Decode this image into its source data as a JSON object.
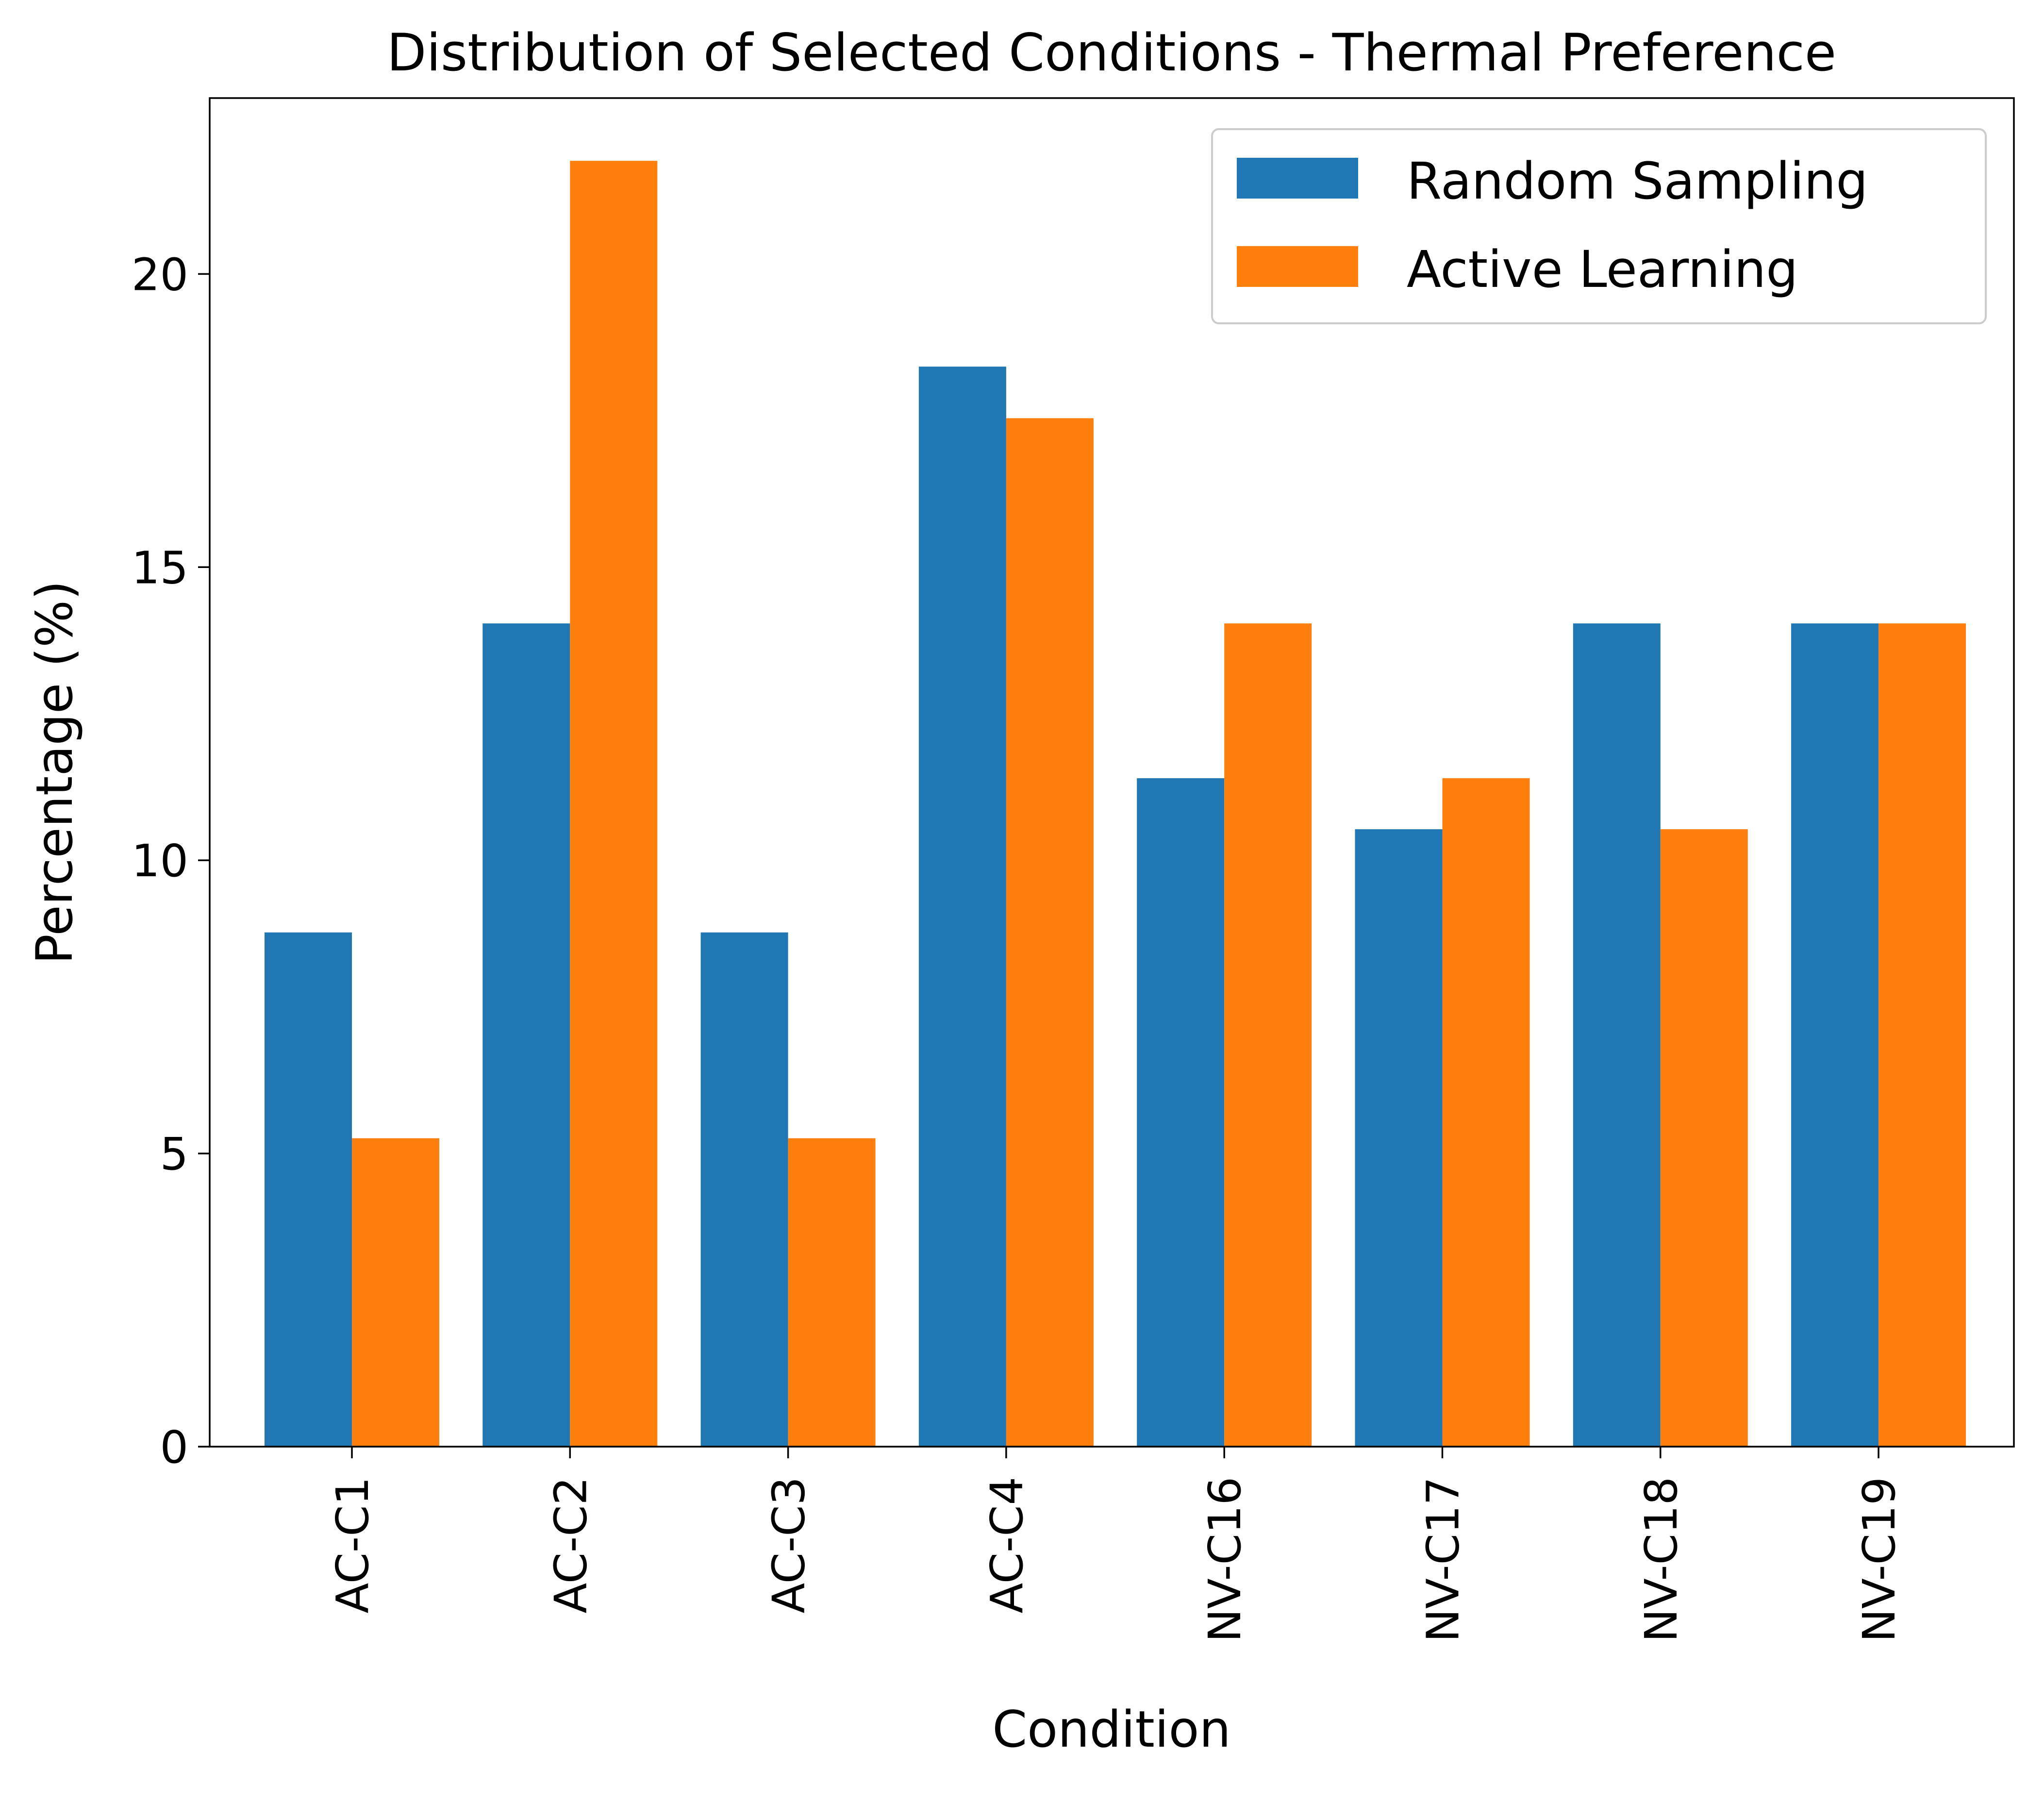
{
  "chart_data": {
    "type": "bar",
    "title": "Distribution of Selected Conditions - Thermal Preference",
    "xlabel": "Condition",
    "ylabel": "Percentage (%)",
    "categories": [
      "AC-C1",
      "AC-C2",
      "AC-C3",
      "AC-C4",
      "NV-C16",
      "NV-C17",
      "NV-C18",
      "NV-C19"
    ],
    "series": [
      {
        "name": "Random Sampling",
        "color": "#1f77b4",
        "values": [
          8.77,
          14.04,
          8.77,
          18.42,
          11.4,
          10.53,
          14.04,
          14.04
        ]
      },
      {
        "name": "Active Learning",
        "color": "#ff7f0e",
        "values": [
          5.26,
          21.93,
          5.26,
          17.54,
          14.04,
          11.4,
          10.53,
          14.04
        ]
      }
    ],
    "ylim": [
      0,
      23.0
    ],
    "yticks": [
      0,
      5,
      10,
      15,
      20
    ],
    "grid": false,
    "legend_position": "top-right"
  }
}
